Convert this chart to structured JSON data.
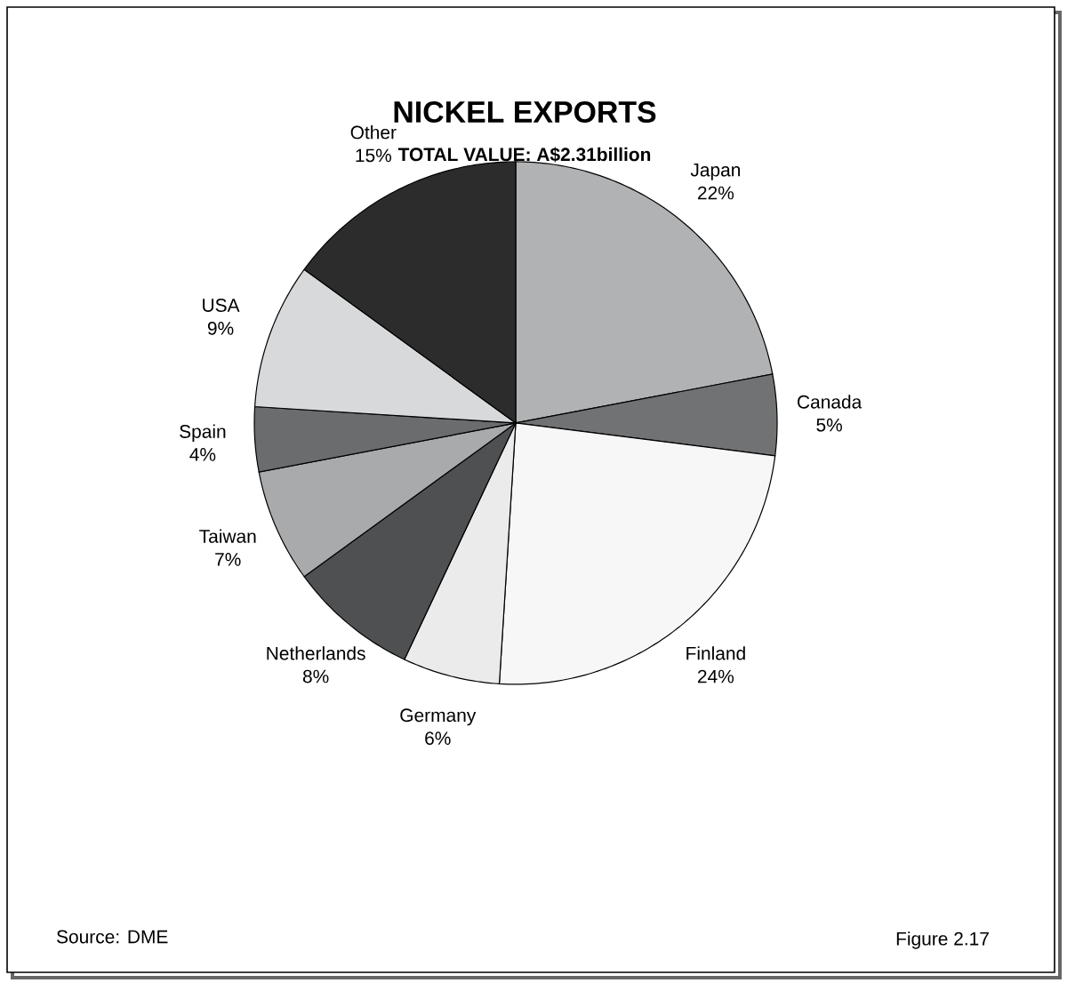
{
  "chart_data": {
    "type": "pie",
    "title": "NICKEL EXPORTS",
    "subtitle": "TOTAL VALUE: A$2.31billion",
    "categories": [
      "Japan",
      "Canada",
      "Finland",
      "Germany",
      "Netherlands",
      "Taiwan",
      "Spain",
      "USA",
      "Other"
    ],
    "values": [
      22,
      5,
      24,
      6,
      8,
      7,
      4,
      9,
      15
    ],
    "value_labels": [
      "22%",
      "5%",
      "24%",
      "6%",
      "8%",
      "7%",
      "4%",
      "9%",
      "15%"
    ],
    "colors": [
      "#b1b2b4",
      "#717274",
      "#f7f7f7",
      "#ebebeb",
      "#4f5051",
      "#a9aaac",
      "#6b6c6e",
      "#d8d9da",
      "#2c2c2d"
    ],
    "annotations": [
      "Source:  DME",
      "Figure 2.17"
    ]
  }
}
